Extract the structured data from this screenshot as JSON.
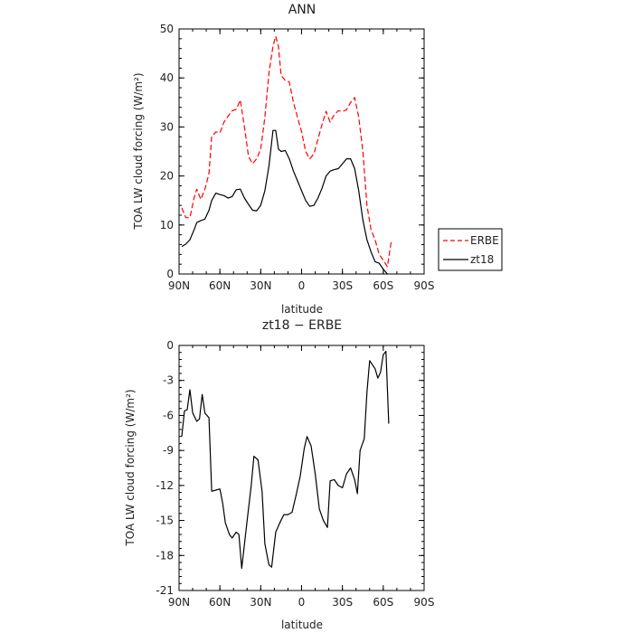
{
  "chart_data": [
    {
      "type": "line",
      "title": "ANN",
      "xlabel": "latitude",
      "ylabel": "TOA LW cloud forcing (W/m²)",
      "xlim": [
        90,
        -90
      ],
      "ylim": [
        0,
        50
      ],
      "xticks": [
        {
          "value": 90,
          "label": "90N"
        },
        {
          "value": 60,
          "label": "60N"
        },
        {
          "value": 30,
          "label": "30N"
        },
        {
          "value": 0,
          "label": "0"
        },
        {
          "value": -30,
          "label": "30S"
        },
        {
          "value": -60,
          "label": "60S"
        },
        {
          "value": -90,
          "label": "90S"
        }
      ],
      "yticks": [
        0,
        10,
        20,
        30,
        40,
        50
      ],
      "legend_position": "right",
      "series": [
        {
          "name": "ERBE",
          "color": "#ff0000",
          "dash": "dashed",
          "points": [
            [
              88,
              13.5
            ],
            [
              85,
              11.5
            ],
            [
              82,
              11.5
            ],
            [
              79,
              15.5
            ],
            [
              77,
              17.3
            ],
            [
              74,
              15.2
            ],
            [
              71,
              17.3
            ],
            [
              68,
              20.5
            ],
            [
              66,
              28
            ],
            [
              63,
              29
            ],
            [
              60,
              28.8
            ],
            [
              57,
              31
            ],
            [
              54,
              32.2
            ],
            [
              51,
              33.3
            ],
            [
              48,
              33.6
            ],
            [
              45,
              35.5
            ],
            [
              42,
              30
            ],
            [
              39,
              24
            ],
            [
              36,
              22.5
            ],
            [
              33,
              23.5
            ],
            [
              30,
              25.5
            ],
            [
              27,
              32
            ],
            [
              24,
              41
            ],
            [
              21,
              46.5
            ],
            [
              19,
              48.5
            ],
            [
              17,
              46.5
            ],
            [
              15,
              40.5
            ],
            [
              12,
              39.5
            ],
            [
              9,
              39.2
            ],
            [
              6,
              35
            ],
            [
              3,
              32
            ],
            [
              0,
              29
            ],
            [
              -3,
              25
            ],
            [
              -6,
              23.5
            ],
            [
              -9,
              24.5
            ],
            [
              -12,
              27.5
            ],
            [
              -15,
              30.5
            ],
            [
              -18,
              33.2
            ],
            [
              -21,
              31
            ],
            [
              -24,
              32.5
            ],
            [
              -27,
              33.3
            ],
            [
              -30,
              33.2
            ],
            [
              -33,
              33.5
            ],
            [
              -36,
              35
            ],
            [
              -39,
              36
            ],
            [
              -42,
              32
            ],
            [
              -45,
              25
            ],
            [
              -48,
              14
            ],
            [
              -51,
              9
            ],
            [
              -54,
              7
            ],
            [
              -57,
              4
            ],
            [
              -60,
              2.8
            ],
            [
              -63,
              1.5
            ],
            [
              -66,
              7
            ]
          ]
        },
        {
          "name": "zt18",
          "color": "#000000",
          "dash": "solid",
          "points": [
            [
              88,
              5.6
            ],
            [
              85,
              6.1
            ],
            [
              82,
              7
            ],
            [
              79,
              9
            ],
            [
              77,
              10.5
            ],
            [
              74,
              10.9
            ],
            [
              71,
              11.2
            ],
            [
              68,
              13
            ],
            [
              66,
              15
            ],
            [
              63,
              16.5
            ],
            [
              60,
              16.2
            ],
            [
              57,
              16
            ],
            [
              54,
              15.5
            ],
            [
              51,
              15.8
            ],
            [
              48,
              17.2
            ],
            [
              45,
              17.3
            ],
            [
              42,
              15.5
            ],
            [
              39,
              14.2
            ],
            [
              36,
              13
            ],
            [
              33,
              12.9
            ],
            [
              30,
              14
            ],
            [
              27,
              17
            ],
            [
              24,
              22
            ],
            [
              21,
              29.3
            ],
            [
              19,
              29.3
            ],
            [
              17,
              25.5
            ],
            [
              15,
              25
            ],
            [
              12,
              25.2
            ],
            [
              9,
              23.5
            ],
            [
              6,
              21
            ],
            [
              3,
              19
            ],
            [
              0,
              17
            ],
            [
              -3,
              15
            ],
            [
              -6,
              13.8
            ],
            [
              -9,
              14
            ],
            [
              -12,
              15.5
            ],
            [
              -15,
              17.5
            ],
            [
              -18,
              20
            ],
            [
              -21,
              21
            ],
            [
              -24,
              21.3
            ],
            [
              -27,
              21.5
            ],
            [
              -30,
              22.5
            ],
            [
              -33,
              23.5
            ],
            [
              -36,
              23.5
            ],
            [
              -39,
              21.5
            ],
            [
              -42,
              17
            ],
            [
              -45,
              11
            ],
            [
              -48,
              7
            ],
            [
              -51,
              4.5
            ],
            [
              -54,
              2.5
            ],
            [
              -57,
              2.2
            ],
            [
              -60,
              1
            ],
            [
              -63,
              0
            ]
          ]
        }
      ]
    },
    {
      "type": "line",
      "title": "zt18 − ERBE",
      "xlabel": "latitude",
      "ylabel": "TOA LW cloud forcing (W/m²)",
      "xlim": [
        90,
        -90
      ],
      "ylim": [
        -21,
        0
      ],
      "xticks": [
        {
          "value": 90,
          "label": "90N"
        },
        {
          "value": 60,
          "label": "60N"
        },
        {
          "value": 30,
          "label": "30N"
        },
        {
          "value": 0,
          "label": "0"
        },
        {
          "value": -30,
          "label": "30S"
        },
        {
          "value": -60,
          "label": "60S"
        },
        {
          "value": -90,
          "label": "90S"
        }
      ],
      "yticks": [
        0,
        -3,
        -6,
        -9,
        -12,
        -15,
        -18,
        -21
      ],
      "series": [
        {
          "name": "",
          "color": "#000000",
          "dash": "solid",
          "points": [
            [
              88,
              -7.8
            ],
            [
              86,
              -5.6
            ],
            [
              84,
              -5.5
            ],
            [
              82,
              -3.8
            ],
            [
              80,
              -5.8
            ],
            [
              77,
              -6.5
            ],
            [
              75,
              -6.3
            ],
            [
              73,
              -4.2
            ],
            [
              71,
              -5.8
            ],
            [
              68,
              -6.2
            ],
            [
              66,
              -12.5
            ],
            [
              63,
              -12.4
            ],
            [
              60,
              -12.3
            ],
            [
              58,
              -13.5
            ],
            [
              56,
              -15.2
            ],
            [
              53,
              -16.2
            ],
            [
              51,
              -16.5
            ],
            [
              48,
              -16
            ],
            [
              46,
              -16.2
            ],
            [
              44,
              -19.1
            ],
            [
              40,
              -15
            ],
            [
              37,
              -12
            ],
            [
              35,
              -9.5
            ],
            [
              32,
              -9.8
            ],
            [
              29,
              -12.5
            ],
            [
              27,
              -17
            ],
            [
              24,
              -18.8
            ],
            [
              22,
              -19
            ],
            [
              19,
              -16
            ],
            [
              16,
              -15.2
            ],
            [
              13,
              -14.5
            ],
            [
              10,
              -14.5
            ],
            [
              7,
              -14.3
            ],
            [
              4,
              -12.8
            ],
            [
              1,
              -11.2
            ],
            [
              -2,
              -8.8
            ],
            [
              -4,
              -7.8
            ],
            [
              -7,
              -8.6
            ],
            [
              -10,
              -11
            ],
            [
              -13,
              -14
            ],
            [
              -16,
              -15
            ],
            [
              -19,
              -15.6
            ],
            [
              -21,
              -11.6
            ],
            [
              -24,
              -11.5
            ],
            [
              -27,
              -12
            ],
            [
              -30,
              -12.2
            ],
            [
              -33,
              -11
            ],
            [
              -36,
              -10.5
            ],
            [
              -39,
              -11.5
            ],
            [
              -41,
              -12.7
            ],
            [
              -43,
              -9
            ],
            [
              -46,
              -8
            ],
            [
              -48,
              -4
            ],
            [
              -50,
              -1.3
            ],
            [
              -54,
              -2
            ],
            [
              -56,
              -2.8
            ],
            [
              -58,
              -2.3
            ],
            [
              -60,
              -0.8
            ],
            [
              -62,
              -0.5
            ],
            [
              -64,
              -6.7
            ]
          ]
        }
      ]
    }
  ]
}
